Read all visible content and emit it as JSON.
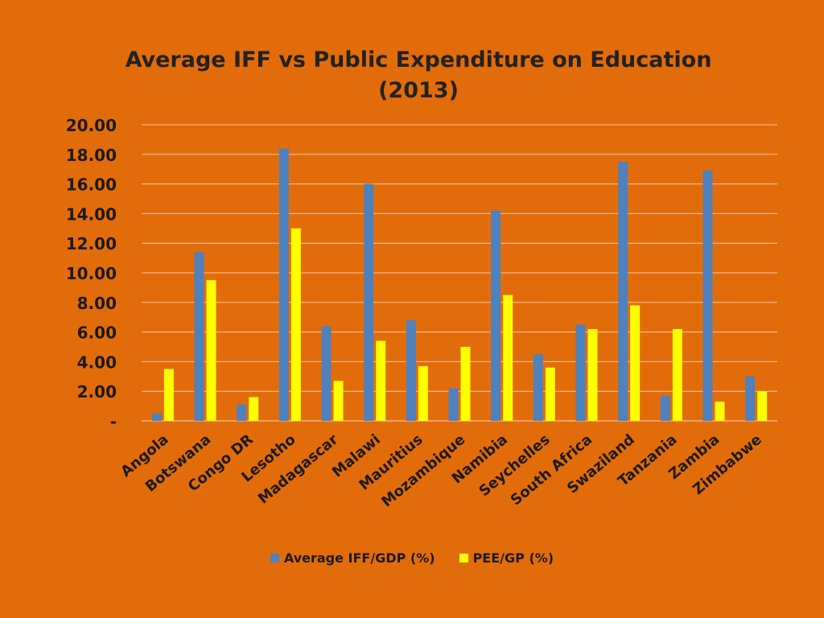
{
  "chart_data": {
    "type": "bar",
    "title_lines": [
      "Average IFF vs Public Expenditure on Education",
      "(2013)"
    ],
    "xlabel": "",
    "ylabel": "",
    "ylim": [
      0,
      20
    ],
    "grid": true,
    "legend_position": "bottom",
    "y_tick_labels": [
      "-",
      "2.00",
      "4.00",
      "6.00",
      "8.00",
      "10.00",
      "12.00",
      "14.00",
      "16.00",
      "18.00",
      "20.00"
    ],
    "categories": [
      "Angola",
      "Botswana",
      "Congo DR",
      "Lesotho",
      "Madagascar",
      "Malawi",
      "Mauritius",
      "Mozambique",
      "Namibia",
      "Seychelles",
      "South Africa",
      "Swaziland",
      "Tanzania",
      "Zambia",
      "Zimbabwe"
    ],
    "series": [
      {
        "name": "Average IFF/GDP (%)",
        "color": "#4F81BD",
        "values": [
          0.5,
          11.4,
          1.1,
          18.4,
          6.4,
          16.0,
          6.8,
          2.2,
          14.2,
          4.5,
          6.5,
          17.5,
          1.7,
          16.9,
          3.0
        ]
      },
      {
        "name": "PEE/GP (%)",
        "color": "#FFFF00",
        "values": [
          3.5,
          9.5,
          1.6,
          13.0,
          2.7,
          5.4,
          3.7,
          5.0,
          8.5,
          3.6,
          6.2,
          7.8,
          6.2,
          1.3,
          2.0
        ]
      }
    ]
  },
  "colors": {
    "background": "#E36C0A",
    "gridline": "#F5C9A6",
    "text": "#1a1a1a"
  }
}
